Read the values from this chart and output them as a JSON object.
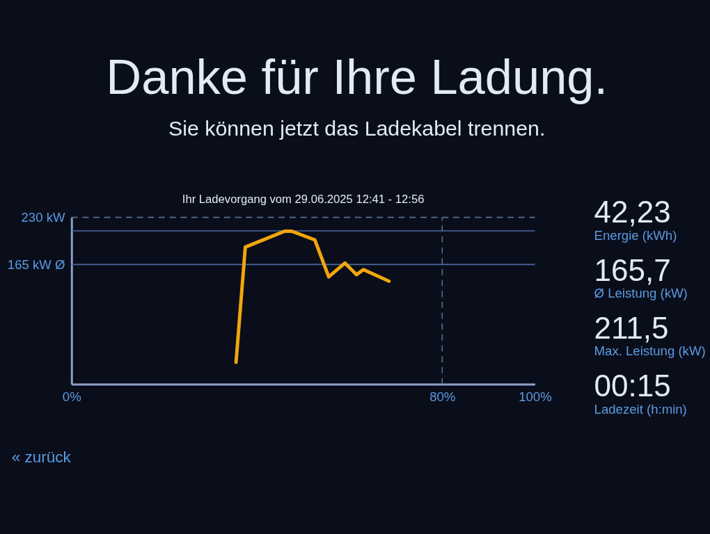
{
  "chart_data": [
    {
      "type": "line",
      "title": "Danke für Ihre Ladung.",
      "subtitle": "Sie können jetzt das Ladekabel trennen.",
      "annotations": [
        "Ihr Ladevorgang vom 29.06.2025 12:41 - 12:56",
        "« zurück"
      ],
      "x": [
        35.5,
        37.5,
        46,
        47.5,
        52.5,
        55.5,
        59,
        61.5,
        63,
        68.5
      ],
      "series": [
        {
          "color": "#f2a60c",
          "values": [
            30,
            189,
            211,
            211,
            199,
            148,
            167,
            151,
            158,
            142
          ]
        }
      ],
      "xlim": [
        0,
        100
      ],
      "xticks": [
        {
          "value": 0,
          "label": "0%"
        },
        {
          "value": 80,
          "label": "80%"
        },
        {
          "value": 100,
          "label": "100%"
        }
      ],
      "ylim": [
        0,
        230
      ],
      "yticks": [
        {
          "value": 165,
          "label": "165 kW Ø"
        },
        {
          "value": 230,
          "label": "230 kW"
        }
      ],
      "ref_lines": [
        {
          "axis": "y",
          "value": 230,
          "line_style": "dashed",
          "color": "#5b6f92"
        },
        {
          "axis": "y",
          "value": 211.5,
          "color": "#4a68a0"
        },
        {
          "axis": "y",
          "value": 165,
          "color": "#4a68a0"
        },
        {
          "axis": "x",
          "value": 80,
          "line_style": "dashed",
          "color": "#5b6f92"
        }
      ],
      "line_style": "solid"
    },
    {
      "type": "other",
      "annotations": [
        "42,23",
        "Energie (kWh)",
        "165,7",
        "Ø Leistung (kW)",
        "211,5",
        "Max. Leistung (kW)",
        "00:15",
        "Ladezeit (h:min)"
      ]
    }
  ]
}
